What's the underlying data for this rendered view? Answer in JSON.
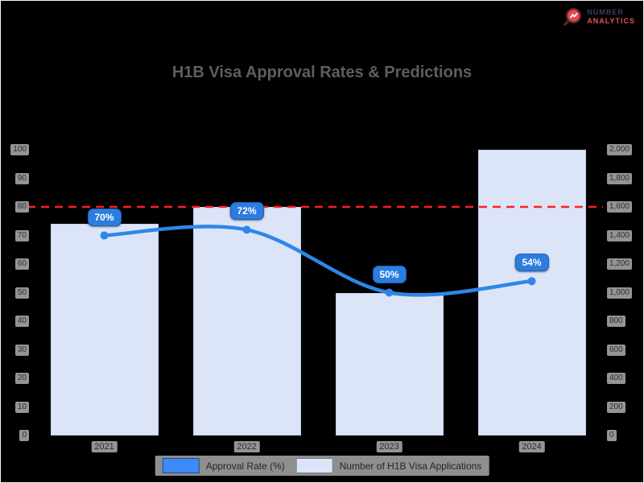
{
  "page": {
    "background": "#000000",
    "frame_color": "#f2f2f2"
  },
  "logo": {
    "text_line1": "NUMBER",
    "text_line2": "ANALYTICS",
    "line1_color": "#39415c",
    "line2_color": "#e25555",
    "icon_fill": "#e14b4b",
    "icon_ring": "#5a2430"
  },
  "chart_data": {
    "type": "combo-bar-line",
    "title": "H1B Visa Approval Rates & Predictions",
    "categories": [
      "2021",
      "2022",
      "2023",
      "2024"
    ],
    "series": [
      {
        "name": "Approval Rate (%)",
        "chart_type": "line",
        "axis": "left",
        "color": "#2e86ea",
        "values": [
          70,
          72,
          50,
          54
        ],
        "point_labels": [
          "70%",
          "72%",
          "50%",
          "54%"
        ],
        "point_label_bg": "#2b7de0",
        "point_label_text_color": "#ffffff"
      },
      {
        "name": "Number of H1B Visa Applications",
        "chart_type": "bar",
        "axis": "right",
        "color": "#dce5f7",
        "border_color": "#c2cfec",
        "values": [
          1480,
          1600,
          1000,
          2000
        ]
      }
    ],
    "left_axis": {
      "min": 0,
      "max": 100,
      "tick_labels": [
        "100",
        "90",
        "80",
        "70",
        "60",
        "50",
        "40",
        "30",
        "20",
        "10",
        "0"
      ]
    },
    "right_axis": {
      "min": 0,
      "max": 2000,
      "tick_labels": [
        "2,000",
        "1,800",
        "1,600",
        "1,400",
        "1,200",
        "1,000",
        "800",
        "600",
        "400",
        "200",
        "0"
      ]
    },
    "threshold": {
      "axis": "left",
      "value": 80,
      "color": "#ff1f1f",
      "style": "dashed"
    },
    "grid": false,
    "legend": {
      "position": "bottom",
      "items": [
        {
          "label": "Approval Rate (%)",
          "swatch_color": "#3d8bf8"
        },
        {
          "label": "Number of H1B Visa Applications",
          "swatch_color": "#dce5f7"
        }
      ]
    }
  }
}
